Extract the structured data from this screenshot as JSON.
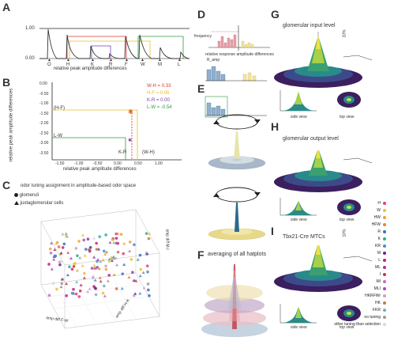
{
  "panels": {
    "A": {
      "label": "A",
      "y_top": "1.00",
      "y_bottom": "0.00",
      "x_markers": [
        "O",
        "H",
        "K",
        "R",
        "F",
        "W",
        "M",
        "L"
      ],
      "xlabel": "relative peak amplitude differences"
    },
    "B": {
      "label": "B",
      "ylabel": "relative peak amplitude differences",
      "xlabel": "relative peak amplitude differences",
      "x_ticks": [
        "-1.50",
        "-1.00",
        "-0.50",
        "0.00",
        "0.50",
        "1.00"
      ],
      "y_ticks": [
        "0.00",
        "-0.50",
        "-1.00",
        "-1.50",
        "-2.00",
        "-2.50",
        "-3.00",
        "-3.50"
      ],
      "pair_labels": [
        "(H-F)",
        "L-W",
        "K-R",
        "(W-H)"
      ],
      "legend": [
        {
          "text": "W-H = 0.33",
          "color": "#d93a3a"
        },
        {
          "text": "H-F = 0.06",
          "color": "#e8c020"
        },
        {
          "text": "K-R = 0.00",
          "color": "#7a3db0"
        },
        {
          "text": "L-W = -0.54",
          "color": "#2e9a40"
        }
      ]
    },
    "C": {
      "label": "C",
      "title": "odor tuning assignment in amplitude-based odor space",
      "marker_glomeruli": "glomeruli",
      "marker_jg": "juxtaglomerular cells",
      "xaxis": "amp diff F-W",
      "yaxis": "amp diff H-K",
      "zaxis": "amp diff M-I",
      "legend": [
        {
          "text": "H",
          "color": "#e0407a"
        },
        {
          "text": "W",
          "color": "#f0c030"
        },
        {
          "text": "HW",
          "color": "#f0a040"
        },
        {
          "text": "HFW",
          "color": "#f08030"
        },
        {
          "text": "R",
          "color": "#3a6fc0"
        },
        {
          "text": "K",
          "color": "#30a8a0"
        },
        {
          "text": "KR",
          "color": "#4090d0"
        },
        {
          "text": "M",
          "color": "#6a2a8a"
        },
        {
          "text": "L",
          "color": "#c02080"
        },
        {
          "text": "ML",
          "color": "#9a3aa0"
        },
        {
          "text": "I",
          "color": "#d03050"
        },
        {
          "text": "MI",
          "color": "#c070c0"
        },
        {
          "text": "MLI",
          "color": "#a050b0"
        },
        {
          "text": "HKRFWr",
          "color": "#d0a0c0"
        },
        {
          "text": "HK",
          "color": "#c07a50"
        },
        {
          "text": "FKR",
          "color": "#70b0c0"
        },
        {
          "text": "no tuning",
          "color": "#9a9a9a"
        },
        {
          "text": "other tuning than selection",
          "color": "#d8d8d8"
        }
      ]
    },
    "D": {
      "label": "D",
      "ylabel": "frequency",
      "xlabel": "relative response amplitude differences"
    },
    "E": {
      "label": "E",
      "sublabel": "R_amp"
    },
    "F": {
      "label": "F",
      "title": "averaging of all hatplots"
    },
    "G": {
      "label": "G",
      "title": "glomerular input level",
      "side": "side view",
      "top": "top view",
      "pct": "10%"
    },
    "H": {
      "label": "H",
      "title": "glomerular output level",
      "side": "side view",
      "top": "top view"
    },
    "I": {
      "label": "I",
      "title": "Tbx21-Cre MTCs",
      "side": "side view",
      "top": "top view",
      "pct": "10%"
    }
  }
}
